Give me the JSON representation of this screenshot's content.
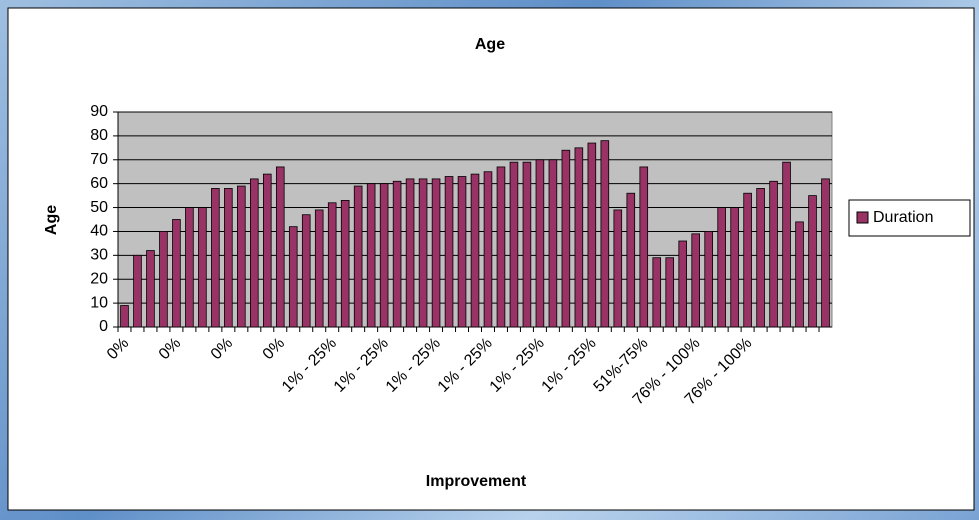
{
  "chart_data": {
    "type": "bar",
    "title": "Age",
    "x_label": "Improvement",
    "y_label": "Age",
    "categories": [
      "0%",
      null,
      null,
      null,
      "0%",
      null,
      null,
      null,
      "0%",
      null,
      null,
      null,
      "0%",
      null,
      null,
      null,
      "1% - 25%",
      null,
      null,
      null,
      "1% - 25%",
      null,
      null,
      null,
      "1% - 25%",
      null,
      null,
      null,
      "1% - 25%",
      null,
      null,
      null,
      "1% - 25%",
      null,
      null,
      null,
      "1% - 25%",
      null,
      null,
      null,
      "51%-75%",
      null,
      null,
      null,
      "76% - 100%",
      null,
      null,
      null,
      "76% - 100%",
      null,
      null,
      null,
      null,
      null,
      null
    ],
    "series": [
      {
        "name": "Duration",
        "color": "#993366",
        "values": [
          9,
          30,
          32,
          40,
          45,
          50,
          50,
          58,
          58,
          59,
          62,
          64,
          67,
          42,
          47,
          49,
          52,
          53,
          59,
          60,
          60,
          61,
          62,
          62,
          62,
          63,
          63,
          64,
          65,
          67,
          69,
          69,
          70,
          70,
          74,
          75,
          77,
          78,
          49,
          56,
          67,
          29,
          29,
          36,
          39,
          40,
          50,
          50,
          56,
          58,
          61,
          69,
          44,
          55,
          62
        ]
      }
    ],
    "ylim": [
      0,
      90
    ],
    "yticks": [
      0,
      10,
      20,
      30,
      40,
      50,
      60,
      70,
      80,
      90
    ],
    "grid": true,
    "legend": "right"
  }
}
